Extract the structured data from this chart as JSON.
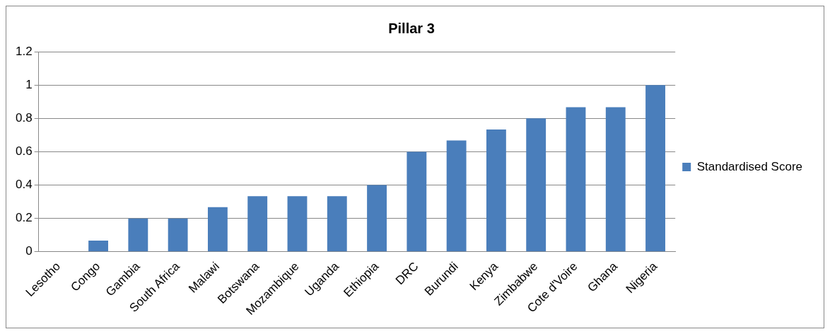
{
  "chart_data": {
    "type": "bar",
    "title": "Pillar 3",
    "categories": [
      "Lesotho",
      "Congo",
      "Gambia",
      "South Africa",
      "Malawi",
      "Botswana",
      "Mozambique",
      "Uganda",
      "Ethiopia",
      "DRC",
      "Burundi",
      "Kenya",
      "Zimbabwe",
      "Cote d'Voire",
      "Ghana",
      "Nigeria"
    ],
    "series": [
      {
        "name": "Standardised Score",
        "color": "#4a7ebb",
        "values": [
          0,
          0.067,
          0.2,
          0.2,
          0.267,
          0.333,
          0.333,
          0.333,
          0.4,
          0.6,
          0.667,
          0.733,
          0.8,
          0.867,
          0.867,
          1
        ]
      }
    ],
    "ylim": [
      0,
      1.2
    ],
    "yticks": [
      0,
      0.2,
      0.4,
      0.6,
      0.8,
      1,
      1.2
    ],
    "grid": "y",
    "legend": "right"
  }
}
